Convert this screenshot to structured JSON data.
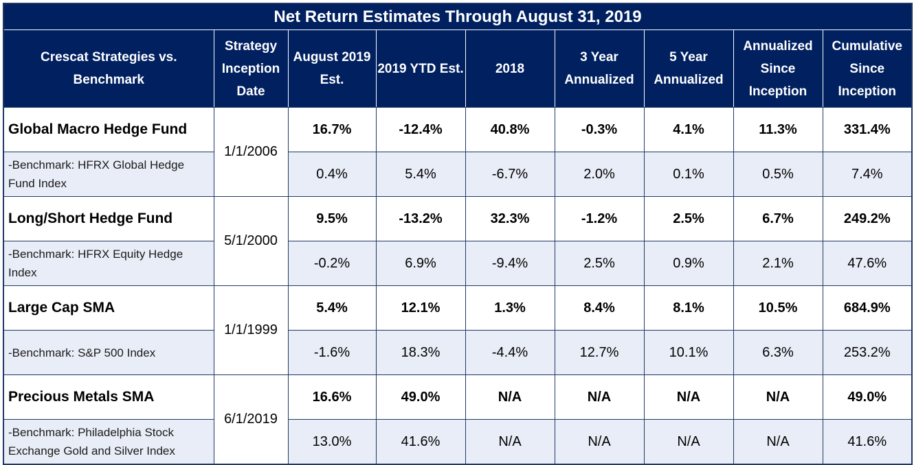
{
  "title": "Net Return Estimates Through August 31, 2019",
  "columns": [
    "Crescat Strategies vs. Benchmark",
    "Strategy Inception Date",
    "August 2019 Est.",
    "2019 YTD Est.",
    "2018",
    "3 Year Annualized",
    "5 Year Annualized",
    "Annualized Since Inception",
    "Cumulative Since Inception"
  ],
  "groups": [
    {
      "inception": "1/1/2006",
      "fund": {
        "name": "Global Macro Hedge Fund",
        "values": [
          "16.7%",
          "-12.4%",
          "40.8%",
          "-0.3%",
          "4.1%",
          "11.3%",
          "331.4%"
        ]
      },
      "benchmark": {
        "name": "-Benchmark: HFRX Global Hedge Fund Index",
        "values": [
          "0.4%",
          "5.4%",
          "-6.7%",
          "2.0%",
          "0.1%",
          "0.5%",
          "7.4%"
        ]
      }
    },
    {
      "inception": "5/1/2000",
      "fund": {
        "name": "Long/Short Hedge Fund",
        "values": [
          "9.5%",
          "-13.2%",
          "32.3%",
          "-1.2%",
          "2.5%",
          "6.7%",
          "249.2%"
        ]
      },
      "benchmark": {
        "name": "-Benchmark: HFRX Equity Hedge Index",
        "values": [
          "-0.2%",
          "6.9%",
          "-9.4%",
          "2.5%",
          "0.9%",
          "2.1%",
          "47.6%"
        ]
      }
    },
    {
      "inception": "1/1/1999",
      "fund": {
        "name": "Large Cap SMA",
        "values": [
          "5.4%",
          "12.1%",
          "1.3%",
          "8.4%",
          "8.1%",
          "10.5%",
          "684.9%"
        ]
      },
      "benchmark": {
        "name": "-Benchmark: S&P 500 Index",
        "values": [
          "-1.6%",
          "18.3%",
          "-4.4%",
          "12.7%",
          "10.1%",
          "6.3%",
          "253.2%"
        ]
      }
    },
    {
      "inception": "6/1/2019",
      "fund": {
        "name": "Precious Metals SMA",
        "values": [
          "16.6%",
          "49.0%",
          "N/A",
          "N/A",
          "N/A",
          "N/A",
          "49.0%"
        ]
      },
      "benchmark": {
        "name": "-Benchmark: Philadelphia Stock Exchange Gold and Silver Index",
        "values": [
          "13.0%",
          "41.6%",
          "N/A",
          "N/A",
          "N/A",
          "N/A",
          "41.6%"
        ]
      }
    }
  ],
  "colors": {
    "header_bg": "#002060",
    "header_text": "#ffffff",
    "benchmark_row_bg": "#e9edf7",
    "border": "#1f3864"
  }
}
